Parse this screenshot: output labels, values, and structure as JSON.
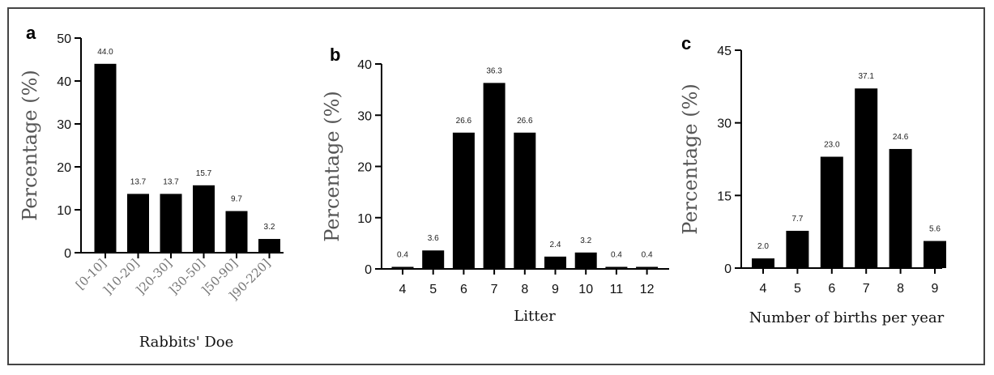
{
  "chart_data": [
    {
      "type": "bar",
      "panel": "a",
      "xlabel": "Rabbits' Doe",
      "ylabel": "Percentage (%)",
      "categories": [
        "[0-10]",
        "]10-20]",
        "]20-30]",
        "]30-50]",
        "]50-90]",
        "]90-220]"
      ],
      "values": [
        44.0,
        13.7,
        13.7,
        15.7,
        9.7,
        3.2
      ],
      "value_labels": [
        "44.0",
        "13.7",
        "13.7",
        "15.7",
        "9.7",
        "3.2"
      ],
      "yticks": [
        "0",
        "10",
        "20",
        "30",
        "40",
        "50"
      ],
      "ylim": [
        0,
        50
      ]
    },
    {
      "type": "bar",
      "panel": "b",
      "xlabel": "Litter",
      "ylabel": "Percentage (%)",
      "categories": [
        "4",
        "5",
        "6",
        "7",
        "8",
        "9",
        "10",
        "11",
        "12"
      ],
      "values": [
        0.4,
        3.6,
        26.6,
        36.3,
        26.6,
        2.4,
        3.2,
        0.4,
        0.4
      ],
      "value_labels": [
        "0.4",
        "3.6",
        "26.6",
        "36.3",
        "26.6",
        "2.4",
        "3.2",
        "0.4",
        "0.4"
      ],
      "yticks": [
        "0",
        "10",
        "20",
        "30",
        "40"
      ],
      "ylim": [
        0,
        40
      ]
    },
    {
      "type": "bar",
      "panel": "c",
      "xlabel": "Number of births per year",
      "ylabel": "Percentage (%)",
      "categories": [
        "4",
        "5",
        "6",
        "7",
        "8",
        "9"
      ],
      "values": [
        2.0,
        7.7,
        23.0,
        37.1,
        24.6,
        5.6
      ],
      "value_labels": [
        "2.0",
        "7.7",
        "23.0",
        "37.1",
        "24.6",
        "5.6"
      ],
      "yticks": [
        "0",
        "15",
        "30",
        "45"
      ],
      "ylim": [
        0,
        45
      ]
    }
  ]
}
